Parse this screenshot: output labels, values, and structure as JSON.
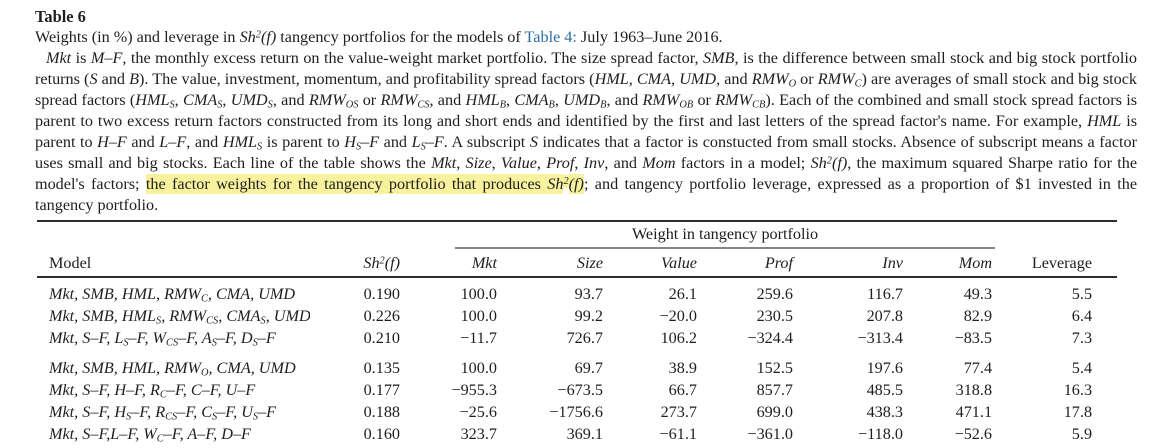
{
  "colors": {
    "text": "#1e1e1e",
    "link_blue": "#2d6da3",
    "highlight_yellow": "#f8f19d",
    "rule_dark": "#2c2c2c",
    "rule_gray": "#858585",
    "background": "#ffffff"
  },
  "title": "Table 6",
  "caption": {
    "intro": [
      {
        "t": "Weights (in %) and leverage in "
      },
      {
        "t": "Sh",
        "i": 1
      },
      {
        "t": "2",
        "i": 1,
        "u": 1
      },
      {
        "t": "(f)",
        "i": 1
      },
      {
        "t": " tangency portfolios for the models of "
      },
      {
        "t": "Table 4:",
        "b": 1
      },
      {
        "t": " July 1963–June 2016."
      }
    ],
    "body": [
      {
        "t": "Mkt",
        "i": 1
      },
      {
        "t": " is "
      },
      {
        "t": "M–F",
        "i": 1
      },
      {
        "t": ", the monthly excess return on the value-weight market portfolio. The size spread factor, "
      },
      {
        "t": "SMB",
        "i": 1
      },
      {
        "t": ", is the difference between small stock and big stock portfolio returns ("
      },
      {
        "t": "S",
        "i": 1
      },
      {
        "t": " and "
      },
      {
        "t": "B",
        "i": 1
      },
      {
        "t": "). The value, investment, momentum, and profitability spread factors ("
      },
      {
        "t": "HML, CMA, UMD",
        "i": 1
      },
      {
        "t": ", and "
      },
      {
        "t": "RMW",
        "i": 1
      },
      {
        "t": "O",
        "i": 1,
        "s": 1
      },
      {
        "t": " or "
      },
      {
        "t": "RMW",
        "i": 1
      },
      {
        "t": "C",
        "i": 1,
        "s": 1
      },
      {
        "t": ") are averages of small stock and big stock spread factors ("
      },
      {
        "t": "HML",
        "i": 1
      },
      {
        "t": "S",
        "i": 1,
        "s": 1
      },
      {
        "t": ", "
      },
      {
        "t": "CMA",
        "i": 1
      },
      {
        "t": "S",
        "i": 1,
        "s": 1
      },
      {
        "t": ", "
      },
      {
        "t": "UMD",
        "i": 1
      },
      {
        "t": "S",
        "i": 1,
        "s": 1
      },
      {
        "t": ", and "
      },
      {
        "t": "RMW",
        "i": 1
      },
      {
        "t": "OS",
        "i": 1,
        "s": 1
      },
      {
        "t": " or "
      },
      {
        "t": "RMW",
        "i": 1
      },
      {
        "t": "CS",
        "i": 1,
        "s": 1
      },
      {
        "t": ", and "
      },
      {
        "t": "HML",
        "i": 1
      },
      {
        "t": "B",
        "i": 1,
        "s": 1
      },
      {
        "t": ", "
      },
      {
        "t": "CMA",
        "i": 1
      },
      {
        "t": "B",
        "i": 1,
        "s": 1
      },
      {
        "t": ", "
      },
      {
        "t": "UMD",
        "i": 1
      },
      {
        "t": "B",
        "i": 1,
        "s": 1
      },
      {
        "t": ", and "
      },
      {
        "t": "RMW",
        "i": 1
      },
      {
        "t": "OB",
        "i": 1,
        "s": 1
      },
      {
        "t": " or "
      },
      {
        "t": "RMW",
        "i": 1
      },
      {
        "t": "CB",
        "i": 1,
        "s": 1
      },
      {
        "t": "). Each of the combined and small stock spread factors is parent to two excess return factors constructed from its long and short ends and identified by the first and last letters of the spread factor's name. For example, "
      },
      {
        "t": "HML",
        "i": 1
      },
      {
        "t": " is parent to "
      },
      {
        "t": "H–F",
        "i": 1
      },
      {
        "t": " and "
      },
      {
        "t": "L–F",
        "i": 1
      },
      {
        "t": ", and "
      },
      {
        "t": "HML",
        "i": 1
      },
      {
        "t": "S",
        "i": 1,
        "s": 1
      },
      {
        "t": " is parent to "
      },
      {
        "t": "H",
        "i": 1
      },
      {
        "t": "S",
        "i": 1,
        "s": 1
      },
      {
        "t": "–F",
        "i": 1
      },
      {
        "t": " and "
      },
      {
        "t": "L",
        "i": 1
      },
      {
        "t": "S",
        "i": 1,
        "s": 1
      },
      {
        "t": "–F",
        "i": 1
      },
      {
        "t": ". A subscript "
      },
      {
        "t": "S",
        "i": 1
      },
      {
        "t": " indicates that a factor is constucted from small stocks. Absence of subscript means a factor uses small and big stocks. Each line of the table shows the "
      },
      {
        "t": "Mkt",
        "i": 1
      },
      {
        "t": ", "
      },
      {
        "t": "Size",
        "i": 1
      },
      {
        "t": ", "
      },
      {
        "t": "Value",
        "i": 1
      },
      {
        "t": ", "
      },
      {
        "t": "Prof",
        "i": 1
      },
      {
        "t": ", "
      },
      {
        "t": "Inv",
        "i": 1
      },
      {
        "t": ", and "
      },
      {
        "t": "Mom",
        "i": 1
      },
      {
        "t": " factors in a model; "
      },
      {
        "t": "Sh",
        "i": 1
      },
      {
        "t": "2",
        "i": 1,
        "u": 1
      },
      {
        "t": "(f)",
        "i": 1
      },
      {
        "t": ", the maximum squared Sharpe ratio for the model's factors; "
      },
      {
        "t": "the factor weights for the tangency portfolio that produces ",
        "h": 1
      },
      {
        "t": "Sh",
        "i": 1,
        "h": 1
      },
      {
        "t": "2",
        "i": 1,
        "u": 1,
        "h": 1
      },
      {
        "t": "(f)",
        "i": 1,
        "h": 1
      },
      {
        "t": "; and tangency portfolio leverage, expressed as a proportion of $1 invested in the tangency portfolio."
      }
    ]
  },
  "table": {
    "group_header": "Weight in tangency portfolio",
    "columns": {
      "model": "Model",
      "sh2": [
        {
          "t": "Sh",
          "i": 1
        },
        {
          "t": "2",
          "i": 1,
          "u": 1
        },
        {
          "t": "(f)",
          "i": 1
        }
      ],
      "weights": [
        "Mkt",
        "Size",
        "Value",
        "Prof",
        "Inv",
        "Mom"
      ],
      "leverage": "Leverage"
    },
    "rows": [
      {
        "model": [
          {
            "t": "Mkt, SMB, HML, RMW",
            "i": 1
          },
          {
            "t": "C",
            "i": 1,
            "s": 1
          },
          {
            "t": ", CMA, UMD",
            "i": 1
          }
        ],
        "sh2": "0.190",
        "weights": [
          "100.0",
          "93.7",
          "26.1",
          "259.6",
          "116.7",
          "49.3"
        ],
        "leverage": "5.5"
      },
      {
        "model": [
          {
            "t": "Mkt, SMB, HML",
            "i": 1
          },
          {
            "t": "S",
            "i": 1,
            "s": 1
          },
          {
            "t": ", RMW",
            "i": 1
          },
          {
            "t": "CS",
            "i": 1,
            "s": 1
          },
          {
            "t": ", CMA",
            "i": 1
          },
          {
            "t": "S",
            "i": 1,
            "s": 1
          },
          {
            "t": ", UMD",
            "i": 1
          },
          {
            "t": "S",
            "i": 1,
            "s": 1
          }
        ],
        "sh2": "0.226",
        "weights": [
          "100.0",
          "99.2",
          "−20.0",
          "230.5",
          "207.8",
          "82.9"
        ],
        "leverage": "6.4"
      },
      {
        "model": [
          {
            "t": "Mkt, S–F, L",
            "i": 1
          },
          {
            "t": "S",
            "i": 1,
            "s": 1
          },
          {
            "t": "–F, W",
            "i": 1
          },
          {
            "t": "CS",
            "i": 1,
            "s": 1
          },
          {
            "t": "–F, A",
            "i": 1
          },
          {
            "t": "S",
            "i": 1,
            "s": 1
          },
          {
            "t": "–F, D",
            "i": 1
          },
          {
            "t": "S",
            "i": 1,
            "s": 1
          },
          {
            "t": "–F",
            "i": 1
          }
        ],
        "sh2": "0.210",
        "weights": [
          "−11.7",
          "726.7",
          "106.2",
          "−324.4",
          "−313.4",
          "−83.5"
        ],
        "leverage": "7.3"
      },
      {
        "model": [
          {
            "t": "Mkt, SMB, HML, RMW",
            "i": 1
          },
          {
            "t": "O",
            "i": 1,
            "s": 1
          },
          {
            "t": ", CMA, UMD",
            "i": 1
          }
        ],
        "sh2": "0.135",
        "weights": [
          "100.0",
          "69.7",
          "38.9",
          "152.5",
          "197.6",
          "77.4"
        ],
        "leverage": "5.4"
      },
      {
        "model": [
          {
            "t": "Mkt, S–F, H–F, R",
            "i": 1
          },
          {
            "t": "C",
            "i": 1,
            "s": 1
          },
          {
            "t": "–F, C–F, U–F",
            "i": 1
          }
        ],
        "sh2": "0.177",
        "weights": [
          "−955.3",
          "−673.5",
          "66.7",
          "857.7",
          "485.5",
          "318.8"
        ],
        "leverage": "16.3"
      },
      {
        "model": [
          {
            "t": "Mkt, S–F, H",
            "i": 1
          },
          {
            "t": "S",
            "i": 1,
            "s": 1
          },
          {
            "t": "–F, R",
            "i": 1
          },
          {
            "t": "CS",
            "i": 1,
            "s": 1
          },
          {
            "t": "–F, C",
            "i": 1
          },
          {
            "t": "S",
            "i": 1,
            "s": 1
          },
          {
            "t": "–F, U",
            "i": 1
          },
          {
            "t": "S",
            "i": 1,
            "s": 1
          },
          {
            "t": "–F",
            "i": 1
          }
        ],
        "sh2": "0.188",
        "weights": [
          "−25.6",
          "−1756.6",
          "273.7",
          "699.0",
          "438.3",
          "471.1"
        ],
        "leverage": "17.8"
      },
      {
        "model": [
          {
            "t": "Mkt, S–F,L–F, W",
            "i": 1
          },
          {
            "t": "C",
            "i": 1,
            "s": 1
          },
          {
            "t": "–F, A–F, D–F",
            "i": 1
          }
        ],
        "sh2": "0.160",
        "weights": [
          "323.7",
          "369.1",
          "−61.1",
          "−361.0",
          "−118.0",
          "−52.6"
        ],
        "leverage": "5.9"
      }
    ]
  }
}
